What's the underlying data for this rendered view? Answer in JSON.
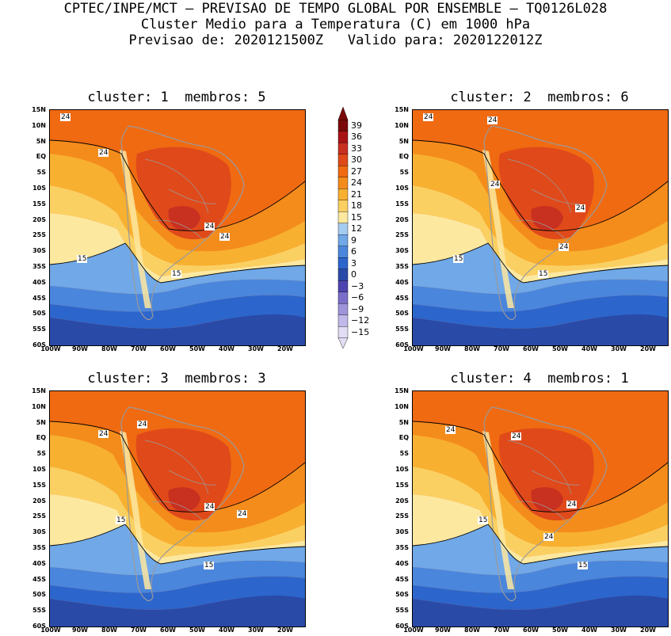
{
  "header": {
    "line1": "CPTEC/INPE/MCT — PREVISAO DE TEMPO GLOBAL POR ENSEMBLE — TQ0126L028",
    "line2": "Cluster Medio para a Temperatura (C) em 1000 hPa",
    "line3": "Previsao de: 2020121500Z   Valido para: 2020122012Z"
  },
  "panels": [
    {
      "title": "cluster: 1  membros: 5"
    },
    {
      "title": "cluster: 2  membros: 6"
    },
    {
      "title": "cluster: 3  membros: 3"
    },
    {
      "title": "cluster: 4  membros: 1"
    }
  ],
  "lat_labels": [
    "15N",
    "10N",
    "5N",
    "EQ",
    "5S",
    "10S",
    "15S",
    "20S",
    "25S",
    "30S",
    "35S",
    "40S",
    "45S",
    "50S",
    "55S",
    "60S"
  ],
  "lon_labels": [
    "100W",
    "90W",
    "80W",
    "70W",
    "60W",
    "50W",
    "40W",
    "30W",
    "20W"
  ],
  "contour_labels": [
    "24",
    "24",
    "24",
    "24",
    "15",
    "15"
  ],
  "colorbar": {
    "labels": [
      "39",
      "36",
      "33",
      "30",
      "27",
      "24",
      "21",
      "18",
      "15",
      "12",
      "9",
      "6",
      "3",
      "0",
      "−3",
      "−6",
      "−9",
      "−12",
      "−15"
    ],
    "colors": [
      "#7a0a0a",
      "#a81414",
      "#c83020",
      "#e04a1a",
      "#f06a12",
      "#f48c1c",
      "#f8b030",
      "#fbd062",
      "#fde8a0",
      "#a4ccf0",
      "#70a8e8",
      "#4a86dc",
      "#2c66cc",
      "#2a4aa8",
      "#4e44b0",
      "#7a6ec8",
      "#9e94da",
      "#c0b8e8",
      "#e2dcf4"
    ]
  },
  "colors": {
    "warm_max": "#c83020",
    "hot": "#e04a1a",
    "orange": "#f06a12",
    "light_orange": "#f48c1c",
    "yellow": "#f8b030",
    "pale": "#fbd062",
    "cream": "#fde8a0",
    "cool_blue": "#70a8e8",
    "mid_blue": "#4a86dc",
    "deep_blue": "#2c66cc",
    "navy": "#2a4aa8"
  }
}
